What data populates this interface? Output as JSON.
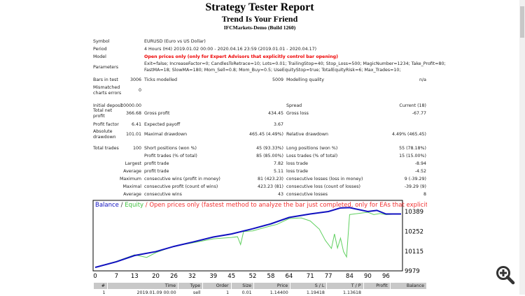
{
  "header": {
    "title": "Strategy Tester Report",
    "expert": "Trend Is Your Friend",
    "server": "IFCMarkets-Demo (Build 1260)"
  },
  "info": {
    "symbol_label": "Symbol",
    "symbol": "EURUSD (Euro vs US Dollar)",
    "period_label": "Period",
    "period": "4 Hours (H4) 2019.01.02 00:00 - 2020.04.16 23:59 (2019.01.01 - 2020.04.17)",
    "model_label": "Model",
    "model": "Open prices only (only for Expert Advisors that explicitly control bar opening)",
    "parameters_label": "Parameters",
    "parameters_1": "Exit=false; IncreaseFactor=0; CandlesToRetrace=10; Lots=0.01; TrailingStop=40; Stop_Loss=500; MagicNumber=1234; Take_Profit=80;",
    "parameters_2": "FastMA=18; SlowMA=180; Mom_Sell=0.8; Mom_Buy=0.5; UseEquityStop=true; TotalEquityRisk=6; Max_Trades=10;",
    "bars_label": "Bars in test",
    "bars": "3006",
    "ticks_label": "Ticks modelled",
    "ticks": "5009",
    "quality_label": "Modelling quality",
    "quality": "n/a",
    "mismatch_label_1": "Mismatched",
    "mismatch_label_2": "charts errors",
    "mismatch": "0"
  },
  "results": {
    "initial_deposit_label": "Initial deposit",
    "initial_deposit": "10000.00",
    "spread_label": "Spread",
    "spread": "Current (18)",
    "net_profit_label_1": "Total net",
    "net_profit_label_2": "profit",
    "net_profit": "366.68",
    "gross_profit_label": "Gross profit",
    "gross_profit": "434.45",
    "gross_loss_label": "Gross loss",
    "gross_loss": "-67.77",
    "profit_factor_label": "Profit factor",
    "profit_factor": "6.41",
    "expected_payoff_label": "Expected payoff",
    "expected_payoff": "3.67",
    "abs_dd_label_1": "Absolute",
    "abs_dd_label_2": "drawdown",
    "abs_dd": "101.01",
    "max_dd_label": "Maximal drawdown",
    "max_dd": "465.45 (4.49%)",
    "rel_dd_label": "Relative drawdown",
    "rel_dd": "4.49% (465.45)",
    "total_trades_label": "Total trades",
    "total_trades": "100",
    "short_label": "Short positions (won %)",
    "short": "45 (93.33%)",
    "long_label": "Long positions (won %)",
    "long": "55 (78.18%)",
    "profit_trades_label": "Profit trades (% of total)",
    "profit_trades": "85 (85.00%)",
    "loss_trades_label": "Loss trades (% of total)",
    "loss_trades": "15 (15.00%)",
    "largest_label": "Largest",
    "largest_profit_label": "profit trade",
    "largest_profit": "7.82",
    "largest_loss_label": "loss trade",
    "largest_loss": "-8.94",
    "average_label": "Average",
    "avg_profit_label": "profit trade",
    "avg_profit": "5.11",
    "avg_loss_label": "loss trade",
    "avg_loss": "-4.52",
    "maximum_label": "Maximum",
    "max_cons_wins_label": "consecutive wins (profit in money)",
    "max_cons_wins": "81 (423.23)",
    "max_cons_losses_label": "consecutive losses (loss in money)",
    "max_cons_losses": "9 (-39.29)",
    "maximal_label": "Maximal",
    "maximal_cons_profit_label": "consecutive profit (count of wins)",
    "maximal_cons_profit": "423.23 (81)",
    "maximal_cons_loss_label": "consecutive loss (count of losses)",
    "maximal_cons_loss": "-39.29 (9)",
    "average2_label": "Average",
    "avg_cons_wins_label": "consecutive wins",
    "avg_cons_wins": "43",
    "avg_cons_losses_label": "consecutive losses",
    "avg_cons_losses": "8"
  },
  "chart_data": {
    "type": "line",
    "legend": {
      "balance": "Balance",
      "sep": " / ",
      "equity": "Equity",
      "model": " / Open prices only (fastest method to analyze the bar just completed, only for EAs that explicitly control b"
    },
    "colors": {
      "balance": "#1010c0",
      "equity": "#50d050",
      "model": "#f03030"
    },
    "xlim": [
      0,
      101
    ],
    "ylim": [
      9979,
      10420
    ],
    "x_ticks": [
      "0",
      "7",
      "13",
      "20",
      "26",
      "32",
      "39",
      "45",
      "52",
      "58",
      "64",
      "71",
      "77",
      "84",
      "90",
      "96"
    ],
    "y_ticks": [
      "10389",
      "10252",
      "10115",
      "9979"
    ],
    "series": [
      {
        "name": "Balance",
        "points": [
          [
            0,
            10003
          ],
          [
            7,
            10042
          ],
          [
            13,
            10085
          ],
          [
            20,
            10112
          ],
          [
            26,
            10148
          ],
          [
            32,
            10177
          ],
          [
            39,
            10213
          ],
          [
            45,
            10234
          ],
          [
            52,
            10270
          ],
          [
            58,
            10304
          ],
          [
            64,
            10348
          ],
          [
            71,
            10372
          ],
          [
            77,
            10389
          ],
          [
            81,
            10414
          ],
          [
            84,
            10416
          ],
          [
            90,
            10389
          ],
          [
            93,
            10397
          ],
          [
            96,
            10372
          ],
          [
            101,
            10372
          ]
        ]
      },
      {
        "name": "Equity",
        "points": [
          [
            0,
            10003
          ],
          [
            7,
            10045
          ],
          [
            13,
            10090
          ],
          [
            17,
            10072
          ],
          [
            20,
            10105
          ],
          [
            26,
            10150
          ],
          [
            32,
            10172
          ],
          [
            39,
            10200
          ],
          [
            45,
            10210
          ],
          [
            47,
            10215
          ],
          [
            48,
            10161
          ],
          [
            49,
            10251
          ],
          [
            52,
            10255
          ],
          [
            58,
            10290
          ],
          [
            60,
            10300
          ],
          [
            64,
            10340
          ],
          [
            68,
            10345
          ],
          [
            71,
            10324
          ],
          [
            74,
            10267
          ],
          [
            76,
            10189
          ],
          [
            78,
            10134
          ],
          [
            79,
            10234
          ],
          [
            80,
            10137
          ],
          [
            81,
            10205
          ],
          [
            82,
            10112
          ],
          [
            83,
            10075
          ],
          [
            84,
            10368
          ],
          [
            90,
            10384
          ],
          [
            92,
            10368
          ],
          [
            94,
            10375
          ],
          [
            96,
            10368
          ],
          [
            101,
            10372
          ]
        ]
      }
    ]
  },
  "trades": {
    "headers": [
      "#",
      "Time",
      "Type",
      "Order",
      "Size",
      "Price",
      "S / L",
      "T / P",
      "Profit",
      "Balance"
    ],
    "rows": [
      [
        "1",
        "2019.01.09 00:00",
        "sell",
        "1",
        "0.01",
        "1.14400",
        "1.19418",
        "1.13618",
        "",
        ""
      ]
    ]
  }
}
